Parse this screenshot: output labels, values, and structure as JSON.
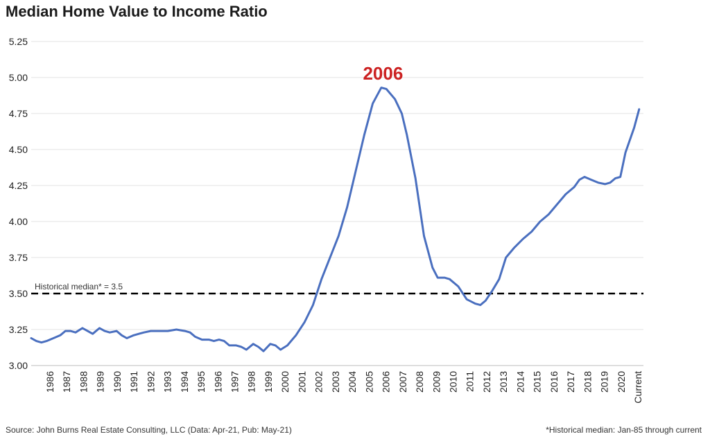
{
  "chart_data": {
    "type": "line",
    "title": "Median Home Value to Income Ratio",
    "xlabel": "",
    "ylabel": "",
    "ylim": [
      3.0,
      5.25
    ],
    "yticks": [
      "3.00",
      "3.25",
      "3.50",
      "3.75",
      "4.00",
      "4.25",
      "4.50",
      "4.75",
      "5.00",
      "5.25"
    ],
    "categories": [
      "1986",
      "1987",
      "1988",
      "1989",
      "1990",
      "1991",
      "1992",
      "1993",
      "1994",
      "1995",
      "1996",
      "1997",
      "1998",
      "1999",
      "2000",
      "2001",
      "2002",
      "2003",
      "2004",
      "2005",
      "2006",
      "2007",
      "2008",
      "2009",
      "2010",
      "2011",
      "2012",
      "2013",
      "2014",
      "2015",
      "2016",
      "2017",
      "2018",
      "2019",
      "2020",
      "Current"
    ],
    "grid": "horizontal",
    "series": [
      {
        "color": "#4a6fbf",
        "points": [
          [
            1985.0,
            3.19
          ],
          [
            1985.3,
            3.17
          ],
          [
            1985.6,
            3.16
          ],
          [
            1985.9,
            3.17
          ],
          [
            1986.3,
            3.19
          ],
          [
            1986.7,
            3.21
          ],
          [
            1987.0,
            3.24
          ],
          [
            1987.3,
            3.24
          ],
          [
            1987.6,
            3.23
          ],
          [
            1988.0,
            3.26
          ],
          [
            1988.3,
            3.24
          ],
          [
            1988.6,
            3.22
          ],
          [
            1989.0,
            3.26
          ],
          [
            1989.3,
            3.24
          ],
          [
            1989.6,
            3.23
          ],
          [
            1990.0,
            3.24
          ],
          [
            1990.3,
            3.21
          ],
          [
            1990.6,
            3.19
          ],
          [
            1991.0,
            3.21
          ],
          [
            1991.3,
            3.22
          ],
          [
            1991.6,
            3.23
          ],
          [
            1992.0,
            3.24
          ],
          [
            1992.5,
            3.24
          ],
          [
            1993.0,
            3.24
          ],
          [
            1993.5,
            3.25
          ],
          [
            1994.0,
            3.24
          ],
          [
            1994.3,
            3.23
          ],
          [
            1994.6,
            3.2
          ],
          [
            1995.0,
            3.18
          ],
          [
            1995.4,
            3.18
          ],
          [
            1995.7,
            3.17
          ],
          [
            1996.0,
            3.18
          ],
          [
            1996.3,
            3.17
          ],
          [
            1996.6,
            3.14
          ],
          [
            1997.0,
            3.14
          ],
          [
            1997.3,
            3.13
          ],
          [
            1997.6,
            3.11
          ],
          [
            1998.0,
            3.15
          ],
          [
            1998.3,
            3.13
          ],
          [
            1998.6,
            3.1
          ],
          [
            1999.0,
            3.15
          ],
          [
            1999.3,
            3.14
          ],
          [
            1999.6,
            3.11
          ],
          [
            2000.0,
            3.14
          ],
          [
            2000.5,
            3.21
          ],
          [
            2001.0,
            3.3
          ],
          [
            2001.5,
            3.42
          ],
          [
            2002.0,
            3.6
          ],
          [
            2002.5,
            3.75
          ],
          [
            2003.0,
            3.9
          ],
          [
            2003.5,
            4.1
          ],
          [
            2004.0,
            4.35
          ],
          [
            2004.5,
            4.6
          ],
          [
            2005.0,
            4.82
          ],
          [
            2005.5,
            4.93
          ],
          [
            2005.8,
            4.92
          ],
          [
            2006.3,
            4.85
          ],
          [
            2006.7,
            4.75
          ],
          [
            2007.0,
            4.6
          ],
          [
            2007.5,
            4.3
          ],
          [
            2008.0,
            3.9
          ],
          [
            2008.5,
            3.68
          ],
          [
            2008.8,
            3.61
          ],
          [
            2009.2,
            3.61
          ],
          [
            2009.5,
            3.6
          ],
          [
            2010.0,
            3.55
          ],
          [
            2010.5,
            3.46
          ],
          [
            2011.0,
            3.43
          ],
          [
            2011.3,
            3.42
          ],
          [
            2011.6,
            3.45
          ],
          [
            2012.0,
            3.52
          ],
          [
            2012.4,
            3.6
          ],
          [
            2012.8,
            3.75
          ],
          [
            2013.3,
            3.82
          ],
          [
            2013.8,
            3.88
          ],
          [
            2014.3,
            3.93
          ],
          [
            2014.8,
            4.0
          ],
          [
            2015.3,
            4.05
          ],
          [
            2015.8,
            4.12
          ],
          [
            2016.3,
            4.19
          ],
          [
            2016.8,
            4.24
          ],
          [
            2017.1,
            4.29
          ],
          [
            2017.4,
            4.31
          ],
          [
            2017.8,
            4.29
          ],
          [
            2018.2,
            4.27
          ],
          [
            2018.6,
            4.26
          ],
          [
            2018.9,
            4.27
          ],
          [
            2019.2,
            4.3
          ],
          [
            2019.5,
            4.31
          ],
          [
            2019.8,
            4.48
          ],
          [
            2020.3,
            4.65
          ],
          [
            2020.6,
            4.78
          ]
        ]
      }
    ],
    "reference_line": {
      "value": 3.5,
      "label": "Historical median* = 3.5",
      "style": "dashed",
      "color": "#000000"
    },
    "annotations": [
      {
        "text": "2006",
        "x": 2005.6,
        "color": "#cc2222"
      }
    ]
  },
  "footer": {
    "source": "Source: John Burns Real Estate Consulting, LLC (Data: Apr-21, Pub: May-21)",
    "median_note": "*Historical median: Jan-85 through current"
  }
}
